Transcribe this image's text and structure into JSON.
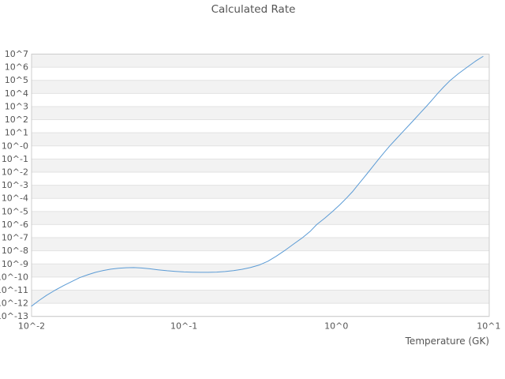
{
  "title": "Calculated Rate",
  "colors": {
    "background": "#ffffff",
    "line": "#5b9bd5",
    "band_fill": "#f2f2f2",
    "gridline": "#e2e2e2",
    "plot_border": "#cccccc",
    "text": "#555555"
  },
  "chart_data": {
    "type": "line",
    "title": "Calculated Rate",
    "xlabel": "Temperature (GK)",
    "ylabel": "",
    "x_scale": "log10",
    "y_scale": "log10",
    "xlim_log": [
      -2,
      1.003
    ],
    "ylim_log": [
      -13,
      7
    ],
    "grid": "horizontal-decade-bands",
    "legend": "none",
    "x_ticks": [
      {
        "label": "10^-2",
        "exp": -2
      },
      {
        "label": "10^-1",
        "exp": -1
      },
      {
        "label": "10^0",
        "exp": 0
      },
      {
        "label": "10^1",
        "exp": 1
      }
    ],
    "y_ticks": [
      {
        "label": "10^7",
        "exp": 7
      },
      {
        "label": "10^6",
        "exp": 6
      },
      {
        "label": "10^5",
        "exp": 5
      },
      {
        "label": "10^4",
        "exp": 4
      },
      {
        "label": "10^3",
        "exp": 3
      },
      {
        "label": "10^2",
        "exp": 2
      },
      {
        "label": "10^1",
        "exp": 1
      },
      {
        "label": "10^-0",
        "exp": 0
      },
      {
        "label": "10^-1",
        "exp": -1
      },
      {
        "label": "10^-2",
        "exp": -2
      },
      {
        "label": "10^-3",
        "exp": -3
      },
      {
        "label": "10^-4",
        "exp": -4
      },
      {
        "label": "10^-5",
        "exp": -5
      },
      {
        "label": "10^-6",
        "exp": -6
      },
      {
        "label": "10^-7",
        "exp": -7
      },
      {
        "label": "10^-8",
        "exp": -8
      },
      {
        "label": "10^-9",
        "exp": -9
      },
      {
        "label": "10^-10",
        "exp": -10
      },
      {
        "label": "10^-11",
        "exp": -11
      },
      {
        "label": "10^-12",
        "exp": -12
      },
      {
        "label": "10^-13",
        "exp": -13
      }
    ],
    "series": [
      {
        "name": "calculated-rate",
        "points_log10": [
          [
            -2.0,
            -12.22
          ],
          [
            -1.95,
            -11.78
          ],
          [
            -1.9,
            -11.38
          ],
          [
            -1.845,
            -11.0
          ],
          [
            -1.79,
            -10.65
          ],
          [
            -1.735,
            -10.33
          ],
          [
            -1.685,
            -10.05
          ],
          [
            -1.63,
            -9.82
          ],
          [
            -1.58,
            -9.64
          ],
          [
            -1.53,
            -9.5
          ],
          [
            -1.48,
            -9.4
          ],
          [
            -1.43,
            -9.33
          ],
          [
            -1.38,
            -9.29
          ],
          [
            -1.33,
            -9.28
          ],
          [
            -1.28,
            -9.31
          ],
          [
            -1.225,
            -9.37
          ],
          [
            -1.17,
            -9.45
          ],
          [
            -1.11,
            -9.52
          ],
          [
            -1.055,
            -9.57
          ],
          [
            -1.0,
            -9.61
          ],
          [
            -0.945,
            -9.63
          ],
          [
            -0.89,
            -9.64
          ],
          [
            -0.84,
            -9.64
          ],
          [
            -0.785,
            -9.62
          ],
          [
            -0.73,
            -9.58
          ],
          [
            -0.675,
            -9.51
          ],
          [
            -0.62,
            -9.41
          ],
          [
            -0.565,
            -9.28
          ],
          [
            -0.505,
            -9.08
          ],
          [
            -0.45,
            -8.8
          ],
          [
            -0.395,
            -8.42
          ],
          [
            -0.341,
            -8.0
          ],
          [
            -0.28,
            -7.48
          ],
          [
            -0.222,
            -7.0
          ],
          [
            -0.17,
            -6.5
          ],
          [
            -0.129,
            -6.0
          ],
          [
            -0.075,
            -5.5
          ],
          [
            -0.025,
            -5.0
          ],
          [
            0.022,
            -4.5
          ],
          [
            0.065,
            -4.0
          ],
          [
            0.105,
            -3.5
          ],
          [
            0.14,
            -3.0
          ],
          [
            0.175,
            -2.5
          ],
          [
            0.21,
            -2.0
          ],
          [
            0.244,
            -1.5
          ],
          [
            0.278,
            -1.0
          ],
          [
            0.314,
            -0.5
          ],
          [
            0.35,
            0.0
          ],
          [
            0.39,
            0.5
          ],
          [
            0.43,
            1.0
          ],
          [
            0.47,
            1.5
          ],
          [
            0.51,
            2.0
          ],
          [
            0.55,
            2.5
          ],
          [
            0.59,
            3.0
          ],
          [
            0.628,
            3.5
          ],
          [
            0.665,
            4.0
          ],
          [
            0.705,
            4.5
          ],
          [
            0.748,
            5.0
          ],
          [
            0.8,
            5.5
          ],
          [
            0.858,
            6.0
          ],
          [
            0.912,
            6.45
          ],
          [
            0.962,
            6.82
          ]
        ]
      }
    ]
  }
}
